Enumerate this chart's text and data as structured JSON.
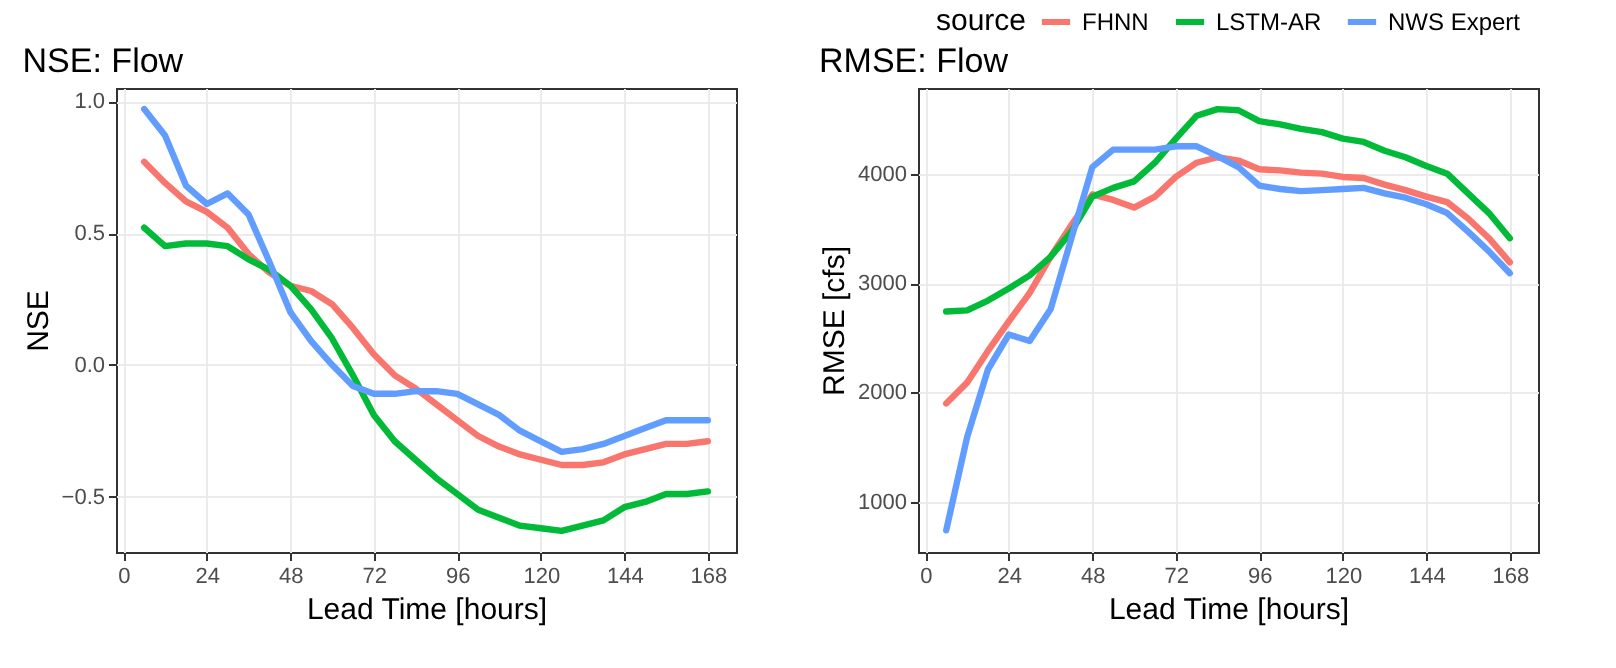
{
  "chart_data": [
    {
      "type": "line",
      "title": "NSE: Flow",
      "xlabel": "Lead Time [hours]",
      "ylabel": "NSE",
      "x": [
        6,
        12,
        18,
        24,
        30,
        36,
        42,
        48,
        54,
        60,
        66,
        72,
        78,
        84,
        90,
        96,
        102,
        108,
        114,
        120,
        126,
        132,
        138,
        144,
        150,
        156,
        162,
        168
      ],
      "series": [
        {
          "name": "FHNN",
          "color": "#f8766d",
          "values": [
            0.77,
            0.69,
            0.62,
            0.58,
            0.52,
            0.42,
            0.35,
            0.3,
            0.28,
            0.23,
            0.14,
            0.04,
            -0.04,
            -0.09,
            -0.15,
            -0.21,
            -0.27,
            -0.31,
            -0.34,
            -0.36,
            -0.38,
            -0.38,
            -0.37,
            -0.34,
            -0.32,
            -0.3,
            -0.3,
            -0.29
          ]
        },
        {
          "name": "LSTM-AR",
          "color": "#00ba38",
          "values": [
            0.52,
            0.45,
            0.46,
            0.46,
            0.45,
            0.4,
            0.36,
            0.3,
            0.21,
            0.1,
            -0.04,
            -0.19,
            -0.29,
            -0.36,
            -0.43,
            -0.49,
            -0.55,
            -0.58,
            -0.61,
            -0.62,
            -0.63,
            -0.61,
            -0.59,
            -0.54,
            -0.52,
            -0.49,
            -0.49,
            -0.48
          ]
        },
        {
          "name": "NWS Expert",
          "color": "#619cff",
          "values": [
            0.97,
            0.87,
            0.68,
            0.61,
            0.65,
            0.57,
            0.39,
            0.2,
            0.09,
            0.0,
            -0.08,
            -0.11,
            -0.11,
            -0.1,
            -0.1,
            -0.11,
            -0.15,
            -0.19,
            -0.25,
            -0.29,
            -0.33,
            -0.32,
            -0.3,
            -0.27,
            -0.24,
            -0.21,
            -0.21,
            -0.21
          ]
        }
      ],
      "xlim": [
        -2.1,
        176.1
      ],
      "xticks": [
        0,
        24,
        48,
        72,
        96,
        120,
        144,
        168
      ],
      "ylim": [
        -0.71,
        1.05
      ],
      "yticks": [
        {
          "value": 1,
          "label": "1.0"
        },
        0.5,
        {
          "value": 0,
          "label": "0.0"
        },
        -0.5
      ],
      "grid": true,
      "legend": "top right",
      "legend_title": "source"
    },
    {
      "type": "line",
      "title": "RMSE: Flow",
      "xlabel": "Lead Time [hours]",
      "ylabel": "RMSE [cfs]",
      "x": [
        6,
        12,
        18,
        24,
        30,
        36,
        42,
        48,
        54,
        60,
        66,
        72,
        78,
        84,
        90,
        96,
        102,
        108,
        114,
        120,
        126,
        132,
        138,
        144,
        150,
        156,
        162,
        168
      ],
      "series": [
        {
          "name": "FHNN",
          "color": "#f8766d",
          "values": [
            1900,
            2090,
            2380,
            2650,
            2910,
            3240,
            3530,
            3810,
            3760,
            3690,
            3790,
            3970,
            4100,
            4150,
            4120,
            4040,
            4030,
            4010,
            4000,
            3970,
            3960,
            3900,
            3850,
            3790,
            3740,
            3590,
            3410,
            3190
          ]
        },
        {
          "name": "LSTM-AR",
          "color": "#00ba38",
          "values": [
            2740,
            2750,
            2840,
            2950,
            3070,
            3240,
            3470,
            3790,
            3870,
            3930,
            4100,
            4320,
            4530,
            4590,
            4580,
            4480,
            4450,
            4410,
            4380,
            4320,
            4290,
            4210,
            4150,
            4070,
            4000,
            3820,
            3640,
            3410
          ]
        },
        {
          "name": "NWS Expert",
          "color": "#619cff",
          "values": [
            740,
            1590,
            2210,
            2530,
            2470,
            2760,
            3410,
            4060,
            4220,
            4220,
            4220,
            4250,
            4250,
            4160,
            4060,
            3890,
            3860,
            3840,
            3850,
            3860,
            3870,
            3820,
            3780,
            3720,
            3640,
            3470,
            3290,
            3090
          ]
        }
      ],
      "xlim": [
        -2.1,
        176.1
      ],
      "xticks": [
        0,
        24,
        48,
        72,
        96,
        120,
        144,
        168
      ],
      "ylim": [
        542,
        4783
      ],
      "yticks": [
        {
          "value": 1000,
          "label": "1000"
        },
        {
          "value": 2000,
          "label": "2000"
        },
        {
          "value": 3000,
          "label": "3000"
        },
        {
          "value": 4000,
          "label": "4000"
        }
      ],
      "grid": true,
      "legend": "top right"
    }
  ]
}
